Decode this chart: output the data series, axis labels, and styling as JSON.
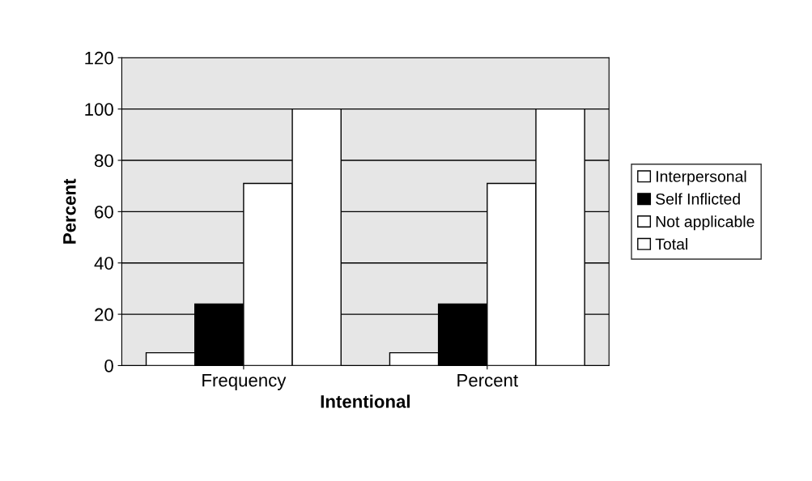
{
  "chart_data": {
    "type": "bar",
    "xlabel": "Intentional",
    "ylabel": "Percent",
    "categories": [
      "Frequency",
      "Percent"
    ],
    "series": [
      {
        "name": "Interpersonal",
        "color": "#ffffff",
        "values": [
          5,
          5
        ]
      },
      {
        "name": "Self Inflicted",
        "color": "#000000",
        "values": [
          24,
          24
        ]
      },
      {
        "name": "Not applicable",
        "color": "#ffffff",
        "values": [
          71,
          71
        ]
      },
      {
        "name": "Total",
        "color": "#ffffff",
        "values": [
          100,
          100
        ]
      }
    ],
    "ylim": [
      0,
      120
    ],
    "yticks": [
      0,
      20,
      40,
      60,
      80,
      100,
      120
    ],
    "grid": "y",
    "legend": "right"
  }
}
